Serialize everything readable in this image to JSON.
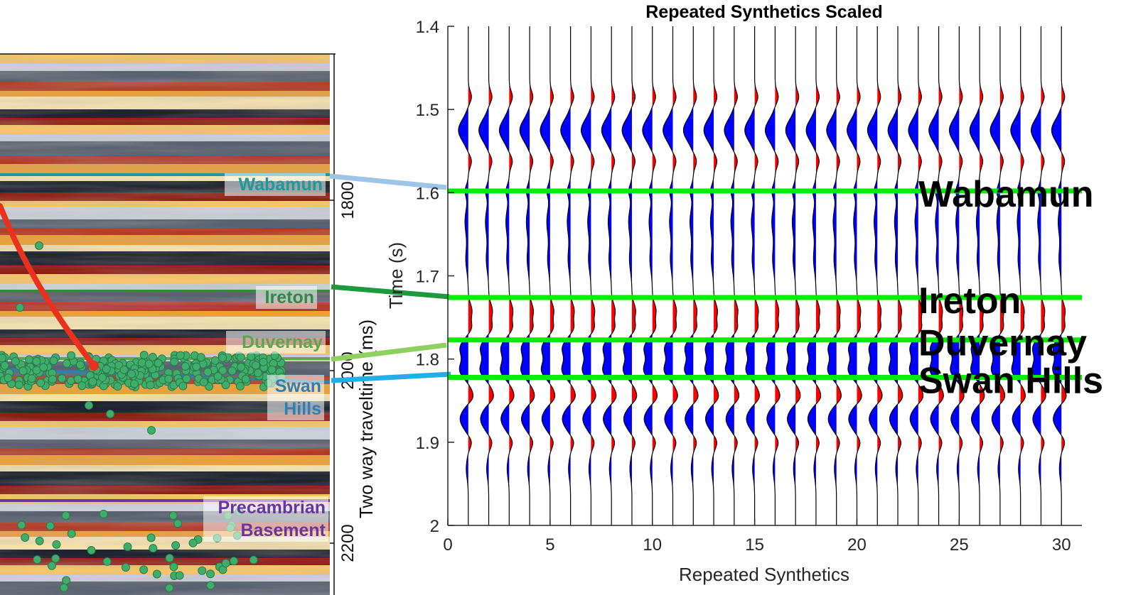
{
  "seismic_panel": {
    "ylabel": "Two way traveltime (ms)",
    "ticks": [
      "1800",
      "2000",
      "2200"
    ],
    "horizons": [
      {
        "name": "Wabamun",
        "color": "#1f9a9a"
      },
      {
        "name": "Ireton",
        "color": "#2e8b3f"
      },
      {
        "name": "Duvernay",
        "color": "#5aa84a"
      },
      {
        "name": "Swan\nHills",
        "color": "#2f7fb5"
      },
      {
        "name": "Precambrian\nBasement",
        "color": "#6a35a0"
      }
    ],
    "colors": {
      "well_path": "#e8321e",
      "events": "#3fae6a"
    }
  },
  "connectors": [
    {
      "color": "#9ec5e8"
    },
    {
      "color": "#1e9a3c"
    },
    {
      "color": "#8fd060"
    },
    {
      "color": "#22aee6"
    }
  ],
  "chart_data": {
    "type": "line",
    "title": "Repeated Synthetics Scaled",
    "xlabel": "Repeated Synthetics",
    "ylabel": "Time (s)",
    "xlim": [
      0,
      31
    ],
    "ylim": [
      1.4,
      2.0
    ],
    "y_reversed": true,
    "xticks": [
      0,
      5,
      10,
      15,
      20,
      25,
      30
    ],
    "yticks": [
      1.4,
      1.5,
      1.6,
      1.7,
      1.8,
      1.9,
      2.0
    ],
    "ytick_labels": [
      "1.4",
      "1.5",
      "1.6",
      "1.7",
      "1.8",
      "1.9",
      "2"
    ],
    "traces": [
      1,
      2,
      3,
      4,
      5,
      6,
      7,
      8,
      9,
      10,
      11,
      12,
      13,
      14,
      15,
      16,
      17,
      18,
      19,
      20,
      21,
      22,
      23,
      24,
      25,
      26,
      27,
      28,
      29,
      30
    ],
    "fill_colors": {
      "positive": "#ff0000",
      "negative": "#0000ff"
    },
    "markers": [
      {
        "label": "Wabamun",
        "time": 1.598,
        "color": "#00ee00"
      },
      {
        "label": "Ireton",
        "time": 1.726,
        "color": "#00ee00"
      },
      {
        "label": "Duvernay",
        "time": 1.777,
        "color": "#00ee00"
      },
      {
        "label": "Swan Hills",
        "time": 1.822,
        "color": "#00ee00"
      }
    ],
    "grid": false
  }
}
